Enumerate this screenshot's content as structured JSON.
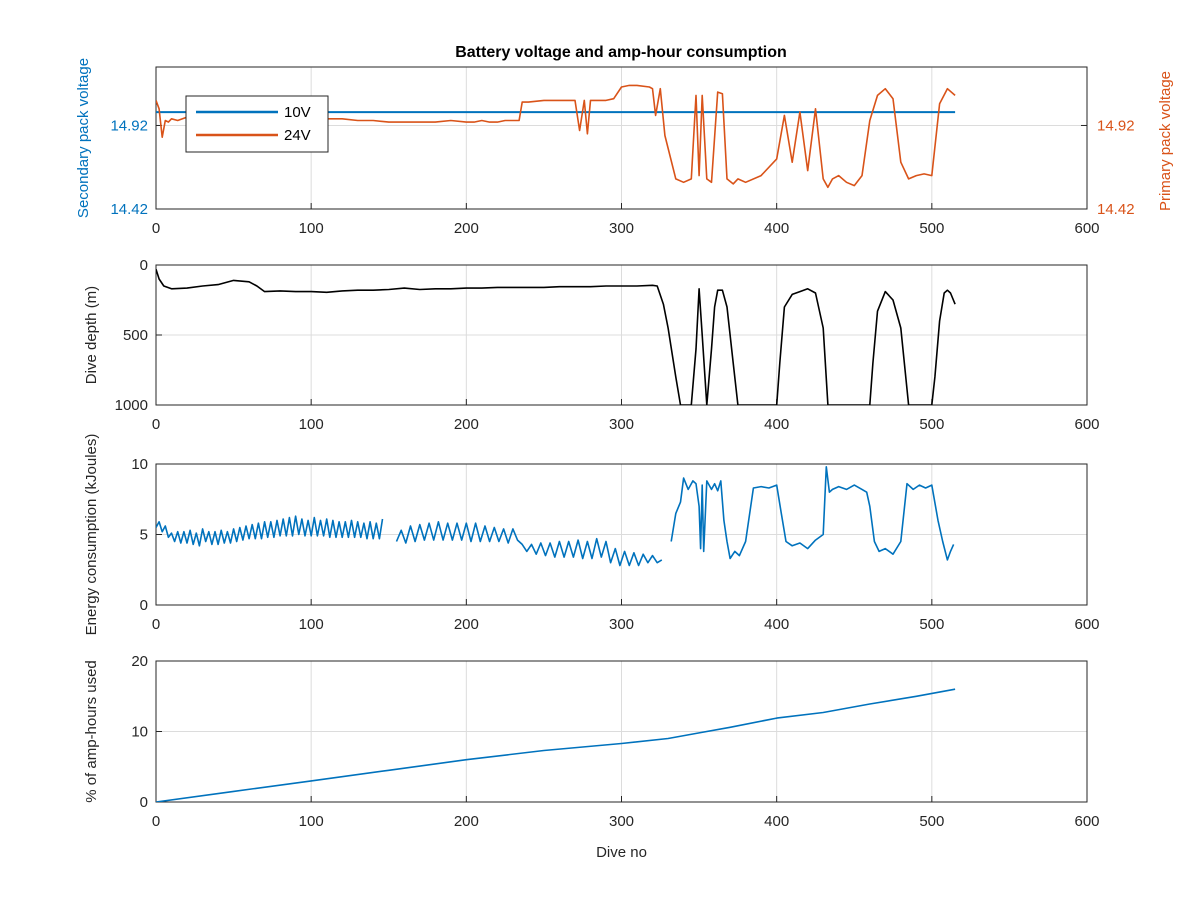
{
  "figure": {
    "title": "Battery voltage and amp-hour consumption"
  },
  "colors": {
    "blue": "#0072BD",
    "orange": "#D95319",
    "black": "#000000"
  },
  "chart_data": [
    {
      "type": "line",
      "title": "Battery voltage and amp-hour consumption",
      "xlabel": "",
      "ylabel": "Secondary pack voltage",
      "ylabel_right": "Primary pack voltage",
      "xlim": [
        0,
        600
      ],
      "xticks": [
        "0",
        "100",
        "200",
        "300",
        "400",
        "500",
        "600"
      ],
      "ylim": [
        14.42,
        15.27
      ],
      "yticks": [
        "14.42",
        "14.92"
      ],
      "yticks_right": [
        "14.42",
        "14.92"
      ],
      "grid": true,
      "legend_position": "top-left",
      "series": [
        {
          "name": "10V",
          "color": "#0072BD",
          "axis": "left",
          "x": [
            0,
            515
          ],
          "y": [
            15.0,
            15.0
          ]
        },
        {
          "name": "24V",
          "color": "#D95319",
          "axis": "right",
          "x": [
            0,
            2,
            4,
            6,
            8,
            10,
            14,
            20,
            30,
            40,
            50,
            60,
            70,
            80,
            90,
            100,
            110,
            120,
            130,
            140,
            150,
            160,
            170,
            180,
            190,
            200,
            205,
            210,
            215,
            220,
            225,
            230,
            234,
            236,
            240,
            250,
            260,
            270,
            273,
            276,
            278,
            280,
            282,
            290,
            295,
            300,
            305,
            310,
            318,
            320,
            322,
            325,
            328,
            335,
            340,
            345,
            348,
            350,
            352,
            355,
            358,
            362,
            365,
            368,
            372,
            375,
            380,
            390,
            400,
            405,
            410,
            415,
            420,
            425,
            430,
            433,
            436,
            440,
            445,
            450,
            455,
            460,
            465,
            470,
            475,
            480,
            485,
            490,
            495,
            500,
            505,
            510,
            515
          ],
          "y": [
            15.07,
            15.02,
            14.85,
            14.95,
            14.94,
            14.96,
            14.95,
            14.97,
            14.96,
            14.97,
            14.97,
            14.98,
            14.96,
            14.95,
            14.96,
            14.97,
            14.96,
            14.96,
            14.95,
            14.95,
            14.94,
            14.94,
            14.94,
            14.94,
            14.95,
            14.94,
            14.94,
            14.95,
            14.94,
            14.94,
            14.95,
            14.95,
            14.95,
            15.06,
            15.06,
            15.07,
            15.07,
            15.07,
            14.89,
            15.07,
            14.87,
            15.07,
            15.07,
            15.07,
            15.08,
            15.15,
            15.16,
            15.16,
            15.15,
            15.14,
            14.98,
            15.14,
            14.86,
            14.6,
            14.58,
            14.6,
            15.1,
            14.62,
            15.1,
            14.6,
            14.58,
            15.12,
            15.11,
            14.6,
            14.57,
            14.6,
            14.58,
            14.62,
            14.72,
            14.98,
            14.7,
            15.0,
            14.65,
            15.02,
            14.6,
            14.55,
            14.6,
            14.62,
            14.58,
            14.56,
            14.62,
            14.95,
            15.1,
            15.14,
            15.08,
            14.7,
            14.6,
            14.62,
            14.63,
            14.62,
            15.05,
            15.14,
            15.1
          ]
        }
      ]
    },
    {
      "type": "line",
      "title": "",
      "xlabel": "",
      "ylabel": "Dive depth (m)",
      "xlim": [
        0,
        600
      ],
      "xticks": [
        "0",
        "100",
        "200",
        "300",
        "400",
        "500",
        "600"
      ],
      "ylim": [
        0,
        1000
      ],
      "y_reversed": true,
      "yticks": [
        "0",
        "500",
        "1000"
      ],
      "grid": true,
      "series": [
        {
          "color": "#000000",
          "x": [
            0,
            2,
            5,
            10,
            20,
            30,
            40,
            50,
            60,
            65,
            70,
            80,
            90,
            100,
            110,
            120,
            130,
            140,
            150,
            160,
            170,
            180,
            190,
            200,
            210,
            220,
            230,
            240,
            250,
            260,
            270,
            280,
            290,
            300,
            310,
            320,
            323,
            327,
            330,
            335,
            338,
            340,
            345,
            348,
            350,
            352,
            355,
            358,
            360,
            362,
            365,
            368,
            372,
            375,
            380,
            390,
            400,
            402,
            405,
            410,
            415,
            420,
            425,
            430,
            433,
            436,
            440,
            450,
            460,
            462,
            465,
            470,
            475,
            480,
            485,
            490,
            500,
            502,
            505,
            508,
            510,
            512,
            515
          ],
          "y": [
            30,
            100,
            150,
            170,
            165,
            150,
            140,
            110,
            120,
            150,
            190,
            185,
            190,
            190,
            195,
            185,
            180,
            180,
            175,
            165,
            175,
            170,
            170,
            165,
            165,
            160,
            160,
            160,
            160,
            155,
            155,
            155,
            150,
            150,
            150,
            145,
            150,
            280,
            450,
            800,
            1000,
            1000,
            1000,
            600,
            170,
            500,
            1000,
            600,
            300,
            180,
            180,
            300,
            700,
            1000,
            1000,
            1000,
            1000,
            700,
            300,
            210,
            190,
            170,
            200,
            450,
            1000,
            1000,
            1000,
            1000,
            1000,
            700,
            330,
            190,
            250,
            450,
            1000,
            1000,
            1000,
            800,
            400,
            200,
            180,
            200,
            280
          ]
        }
      ]
    },
    {
      "type": "line",
      "title": "",
      "xlabel": "",
      "ylabel": "Energy consumption (kJoules)",
      "xlim": [
        0,
        600
      ],
      "xticks": [
        "0",
        "100",
        "200",
        "300",
        "400",
        "500",
        "600"
      ],
      "ylim": [
        0,
        10
      ],
      "yticks": [
        "0",
        "5",
        "10"
      ],
      "grid": true,
      "series": [
        {
          "color": "#0072BD",
          "x": [
            0,
            2,
            4,
            6,
            8,
            10,
            12,
            14,
            16,
            18,
            20,
            22,
            24,
            26,
            28,
            30,
            32,
            34,
            36,
            38,
            40,
            42,
            44,
            46,
            48,
            50,
            52,
            54,
            56,
            58,
            60,
            62,
            64,
            66,
            68,
            70,
            72,
            74,
            76,
            78,
            80,
            82,
            84,
            86,
            88,
            90,
            92,
            94,
            96,
            98,
            100,
            102,
            104,
            106,
            108,
            110,
            112,
            114,
            116,
            118,
            120,
            122,
            124,
            126,
            128,
            130,
            132,
            134,
            136,
            138,
            140,
            142,
            144,
            146
          ],
          "y": [
            5.5,
            5.9,
            5.2,
            5.6,
            4.8,
            5.1,
            4.5,
            5.2,
            4.4,
            5.2,
            4.4,
            5.3,
            4.3,
            5.1,
            4.2,
            5.4,
            4.5,
            5.2,
            4.3,
            5.2,
            4.3,
            5.3,
            4.4,
            5.2,
            4.4,
            5.4,
            4.5,
            5.5,
            4.6,
            5.6,
            4.7,
            5.7,
            4.7,
            5.8,
            4.7,
            5.9,
            4.8,
            5.9,
            4.8,
            6.0,
            4.9,
            6.1,
            4.9,
            6.2,
            4.9,
            6.3,
            5.0,
            6.1,
            4.9,
            6.0,
            4.9,
            6.2,
            4.9,
            6.0,
            4.9,
            6.1,
            4.8,
            6.0,
            4.8,
            5.9,
            4.8,
            5.9,
            4.8,
            6.0,
            4.8,
            5.9,
            4.8,
            5.8,
            4.7,
            5.9,
            4.7,
            5.8,
            4.7,
            6.1
          ]
        },
        {
          "color": "#0072BD",
          "x": [
            155,
            158,
            161,
            164,
            167,
            170,
            173,
            176,
            179,
            182,
            185,
            188,
            191,
            194,
            197,
            200,
            203,
            206,
            209,
            212,
            215,
            218,
            221,
            224,
            227,
            230,
            233,
            236,
            239,
            242,
            245,
            248,
            251,
            254,
            257,
            260,
            263,
            266,
            269,
            272,
            275,
            278,
            281,
            284,
            287,
            290,
            293,
            296,
            299,
            302,
            305,
            308,
            311,
            314,
            317,
            320,
            323,
            326
          ],
          "y": [
            4.5,
            5.3,
            4.4,
            5.6,
            4.5,
            5.7,
            4.6,
            5.8,
            4.6,
            5.9,
            4.6,
            5.8,
            4.6,
            5.8,
            4.6,
            5.8,
            4.5,
            5.8,
            4.5,
            5.6,
            4.5,
            5.5,
            4.5,
            5.4,
            4.4,
            5.4,
            4.6,
            4.3,
            3.8,
            4.3,
            3.6,
            4.4,
            3.5,
            4.4,
            3.4,
            4.5,
            3.4,
            4.5,
            3.4,
            4.6,
            3.3,
            4.5,
            3.3,
            4.7,
            3.4,
            4.5,
            3.0,
            4.0,
            2.8,
            3.8,
            2.8,
            3.7,
            2.8,
            3.6,
            3.0,
            3.5,
            3.0,
            3.2
          ]
        },
        {
          "color": "#0072BD",
          "x": [
            332,
            335,
            338,
            340,
            343,
            346,
            348,
            350,
            351,
            352,
            353,
            355,
            358,
            360,
            362,
            364,
            366,
            368,
            370,
            373,
            376,
            380,
            385,
            390,
            395,
            400,
            403,
            406,
            410,
            415,
            420,
            425,
            430,
            432,
            434,
            436,
            440,
            445,
            450,
            455,
            458,
            460,
            463,
            466,
            470,
            475,
            480,
            484,
            488,
            492,
            496,
            500,
            504,
            507,
            510,
            512,
            514
          ],
          "y": [
            4.5,
            6.5,
            7.3,
            9.0,
            8.2,
            8.8,
            8.6,
            7.0,
            4.0,
            8.5,
            3.8,
            8.8,
            8.2,
            8.6,
            8.1,
            8.8,
            6.0,
            4.5,
            3.3,
            3.8,
            3.5,
            4.5,
            8.3,
            8.4,
            8.3,
            8.5,
            6.5,
            4.5,
            4.2,
            4.4,
            4.0,
            4.6,
            5.0,
            9.8,
            8.0,
            8.2,
            8.4,
            8.2,
            8.5,
            8.2,
            8.0,
            7.0,
            4.5,
            3.8,
            4.0,
            3.6,
            4.5,
            8.6,
            8.2,
            8.5,
            8.3,
            8.5,
            6.0,
            4.5,
            3.2,
            3.8,
            4.3
          ]
        }
      ]
    },
    {
      "type": "line",
      "title": "",
      "xlabel": "Dive no",
      "ylabel": "% of amp-hours used",
      "xlim": [
        0,
        600
      ],
      "xticks": [
        "0",
        "100",
        "200",
        "300",
        "400",
        "500",
        "600"
      ],
      "ylim": [
        0,
        20
      ],
      "yticks": [
        "0",
        "10",
        "20"
      ],
      "grid": true,
      "series": [
        {
          "color": "#0072BD",
          "x": [
            0,
            50,
            100,
            150,
            200,
            250,
            300,
            330,
            350,
            370,
            400,
            430,
            460,
            490,
            515
          ],
          "y": [
            0,
            1.5,
            3.0,
            4.5,
            6.0,
            7.3,
            8.3,
            9.0,
            9.8,
            10.6,
            11.9,
            12.7,
            13.9,
            15.0,
            16.0
          ]
        }
      ]
    }
  ]
}
